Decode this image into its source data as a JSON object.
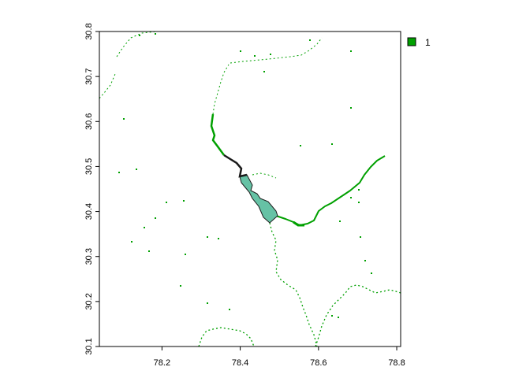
{
  "chart_data": {
    "type": "map",
    "x_ticks": [
      "78.2",
      "78.4",
      "78.6",
      "78.8"
    ],
    "y_ticks": [
      "30.1",
      "30.2",
      "30.3",
      "30.4",
      "30.5",
      "30.6",
      "30.7",
      "30.8"
    ],
    "xlim": [
      78.04,
      78.81
    ],
    "ylim": [
      30.1,
      30.8
    ],
    "legend": {
      "entries": [
        {
          "label": "1",
          "color": "#00a000"
        }
      ],
      "placement": "right"
    },
    "colors": {
      "river": "#00a000",
      "lake_fill": "#66c2a5",
      "lake_outline": "#1a1a1a",
      "frame": "#000000"
    }
  }
}
